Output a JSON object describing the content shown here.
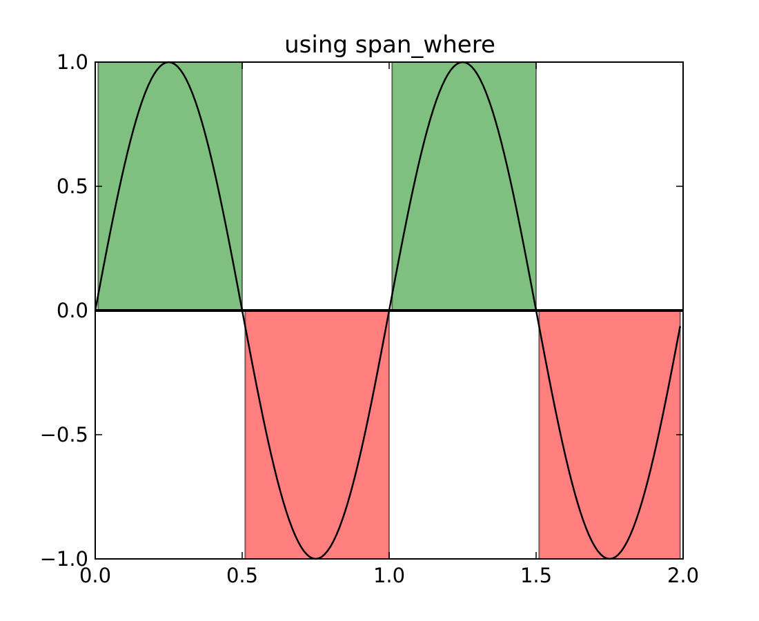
{
  "chart_data": {
    "type": "line",
    "title": "using span_where",
    "xlabel": "",
    "ylabel": "",
    "xlim": [
      0.0,
      2.0
    ],
    "ylim": [
      -1.0,
      1.0
    ],
    "grid": false,
    "x_ticks": [
      {
        "value": 0.0,
        "label": "0.0"
      },
      {
        "value": 0.5,
        "label": "0.5"
      },
      {
        "value": 1.0,
        "label": "1.0"
      },
      {
        "value": 1.5,
        "label": "1.5"
      },
      {
        "value": 2.0,
        "label": "2.0"
      }
    ],
    "y_ticks": [
      {
        "value": 1.0,
        "label": "1.0"
      },
      {
        "value": 0.5,
        "label": "0.5"
      },
      {
        "value": 0.0,
        "label": "0.0"
      },
      {
        "value": -0.5,
        "label": "−0.5"
      },
      {
        "value": -1.0,
        "label": "−1.0"
      }
    ],
    "series": [
      {
        "function": "sin(2*pi*x)",
        "x_range": [
          0.0,
          1.99
        ],
        "sample_step": 0.01,
        "color": "#000000"
      }
    ],
    "horizontal_lines": [
      {
        "y": 0.0,
        "color": "#000000"
      }
    ],
    "spans": [
      {
        "x0": 0.01,
        "x1": 0.5,
        "y0": 0.0,
        "y1": 1.0,
        "color": "#008000",
        "alpha": 0.5
      },
      {
        "x0": 0.51,
        "x1": 1.0,
        "y0": -1.0,
        "y1": 0.0,
        "color": "#ff0000",
        "alpha": 0.5
      },
      {
        "x0": 1.01,
        "x1": 1.5,
        "y0": 0.0,
        "y1": 1.0,
        "color": "#008000",
        "alpha": 0.5
      },
      {
        "x0": 1.51,
        "x1": 1.99,
        "y0": -1.0,
        "y1": 0.0,
        "color": "#ff0000",
        "alpha": 0.5
      }
    ]
  }
}
